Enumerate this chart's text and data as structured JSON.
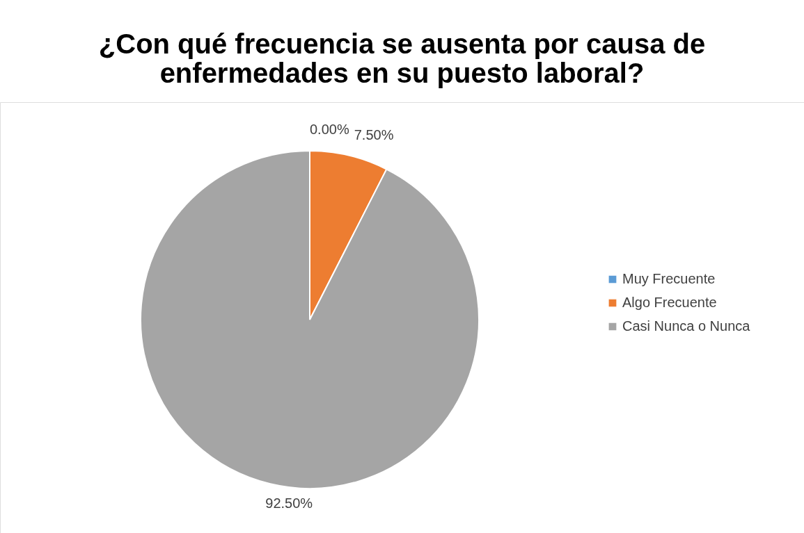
{
  "chart_data": {
    "type": "pie",
    "title": [
      "¿Con qué frecuencia se ausenta por causa de",
      "enfermedades en su puesto laboral?"
    ],
    "categories": [
      "Muy Frecuente",
      "Algo Frecuente",
      "Casi Nunca o Nunca"
    ],
    "values": [
      0,
      7.5,
      92.5
    ],
    "colors": [
      "#5b9bd5",
      "#ed7d31",
      "#a5a5a5"
    ],
    "value_labels": [
      "0.00%",
      "7.50%",
      "92.50%"
    ],
    "legend": "right"
  }
}
